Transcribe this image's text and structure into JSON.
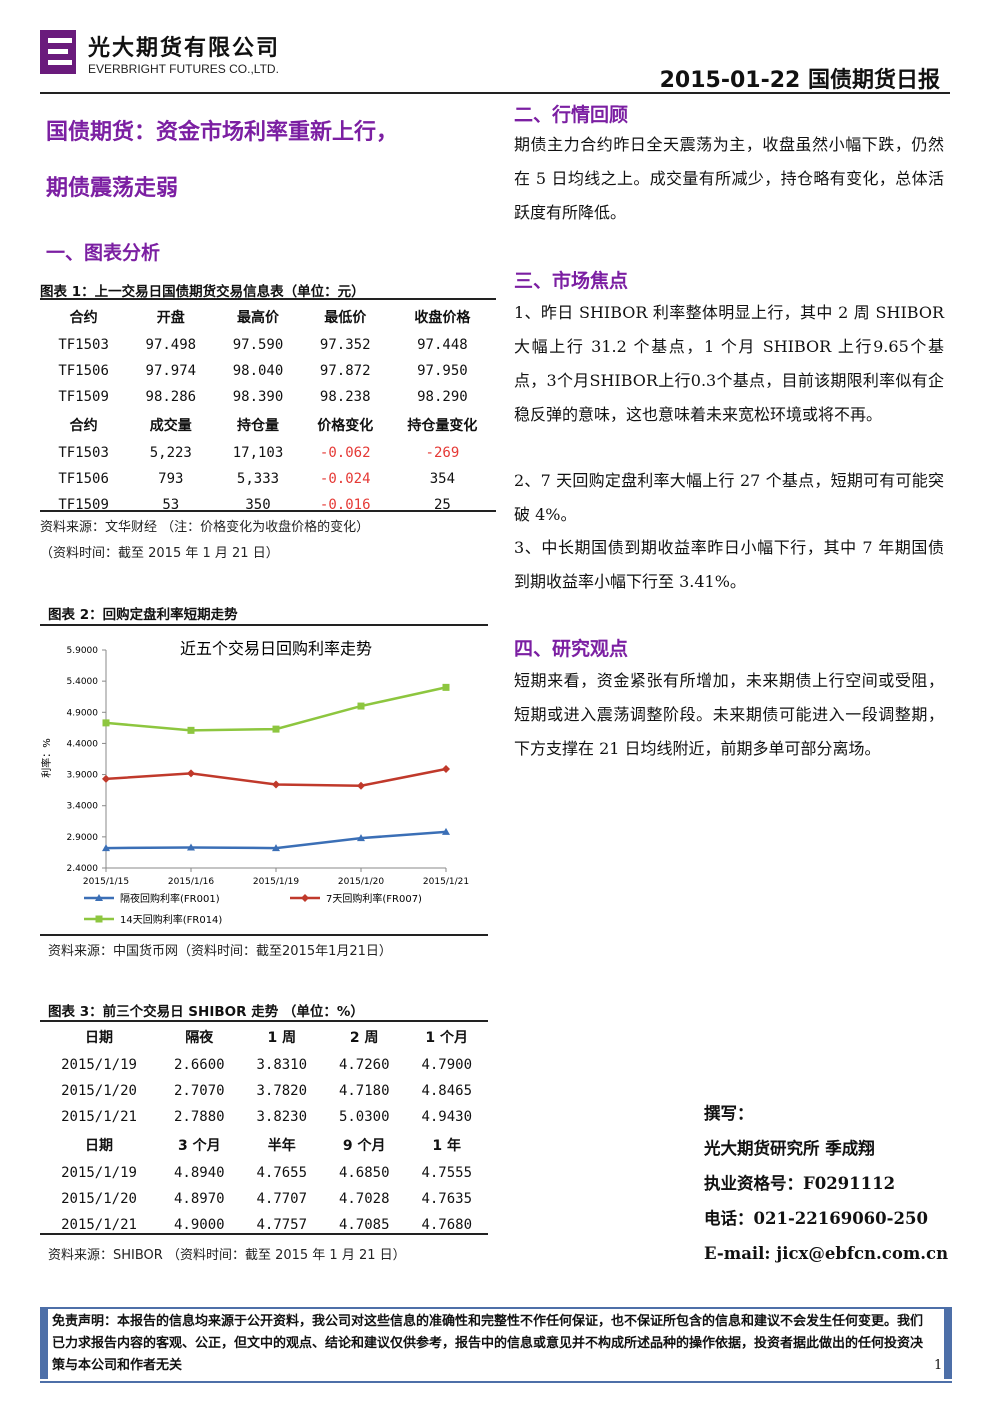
{
  "header": {
    "company_cn": "光大期货有限公司",
    "company_en": "EVERBRIGHT FUTURES CO.,LTD.",
    "report_title": "2015-01-22 国债期货日报"
  },
  "headline": {
    "line1": "国债期货：资金市场利率重新上行，",
    "line2": "期债震荡走弱"
  },
  "section1": {
    "title": "一、图表分析",
    "table1": {
      "caption": "图表 1：上一交易日国债期货交易信息表（单位：元）",
      "headers1": [
        "合约",
        "开盘",
        "最高价",
        "最低价",
        "收盘价格"
      ],
      "rows1": [
        [
          "TF1503",
          "97.498",
          "97.590",
          "97.352",
          "97.448"
        ],
        [
          "TF1506",
          "97.974",
          "98.040",
          "97.872",
          "97.950"
        ],
        [
          "TF1509",
          "98.286",
          "98.390",
          "98.238",
          "98.290"
        ]
      ],
      "headers2": [
        "合约",
        "成交量",
        "持仓量",
        "价格变化",
        "持仓量变化"
      ],
      "rows2": [
        [
          "TF1503",
          "5,223",
          "17,103",
          "-0.062",
          "-269"
        ],
        [
          "TF1506",
          "793",
          "5,333",
          "-0.024",
          "354"
        ],
        [
          "TF1509",
          "53",
          "350",
          "-0.016",
          "25"
        ]
      ],
      "source": "资料来源：文华财经 （注：价格变化为收盘价格的变化）",
      "time": "（资料时间：截至 2015 年 1 月 21 日）"
    },
    "chart": {
      "caption": "图表 2：回购定盘利率短期走势",
      "source": "资料来源：中国货币网（资料时间：截至2015年1月21日）"
    },
    "table3": {
      "caption": "图表 3：前三个交易日 SHIBOR 走势 （单位：%）",
      "headers1": [
        "日期",
        "隔夜",
        "1 周",
        "2 周",
        "1 个月"
      ],
      "rows1": [
        [
          "2015/1/19",
          "2.6600",
          "3.8310",
          "4.7260",
          "4.7900"
        ],
        [
          "2015/1/20",
          "2.7070",
          "3.7820",
          "4.7180",
          "4.8465"
        ],
        [
          "2015/1/21",
          "2.7880",
          "3.8230",
          "5.0300",
          "4.9430"
        ]
      ],
      "headers2": [
        "日期",
        "3 个月",
        "半年",
        "9 个月",
        "1 年"
      ],
      "rows2": [
        [
          "2015/1/19",
          "4.8940",
          "4.7655",
          "4.6850",
          "4.7555"
        ],
        [
          "2015/1/20",
          "4.8970",
          "4.7707",
          "4.7028",
          "4.7635"
        ],
        [
          "2015/1/21",
          "4.9000",
          "4.7757",
          "4.7085",
          "4.7680"
        ]
      ],
      "source": "资料来源：SHIBOR （资料时间：截至 2015 年 1 月 21 日）"
    }
  },
  "section2": {
    "title": "二、行情回顾",
    "text": "期债主力合约昨日全天震荡为主，收盘虽然小幅下跌，仍然在 5 日均线之上。成交量有所减少，持仓略有变化，总体活跃度有所降低。"
  },
  "section3": {
    "title": "三、市场焦点",
    "p1": "1、昨日 SHIBOR 利率整体明显上行，其中 2 周 SHIBOR 大幅上行 31.2 个基点，1 个月 SHIBOR 上行9.65个基点，3个月SHIBOR上行0.3个基点，目前该期限利率似有企稳反弹的意味，这也意味着未来宽松环境或将不再。",
    "p2": "2、7 天回购定盘利率大幅上行 27 个基点，短期可有可能突破 4%。",
    "p3": "3、中长期国债到期收益率昨日小幅下行，其中 7 年期国债到期收益率小幅下行至 3.41%。"
  },
  "section4": {
    "title": "四、研究观点",
    "text": "短期来看，资金紧张有所增加，未来期债上行空间或受阻，短期或进入震荡调整阶段。未来期债可能进入一段调整期，下方支撑在 21 日均线附近，前期多单可部分离场。"
  },
  "contact": {
    "label": "撰写：",
    "author": "光大期货研究所 季成翔",
    "license": "执业资格号：F0291112",
    "phone": "电话：021-22169060-250",
    "email": "E-mail: jicx@ebfcn.com.cn"
  },
  "disclaimer": {
    "text": "免责声明：本报告的信息均来源于公开资料，我公司对这些信息的准确性和完整性不作任何保证，也不保证所包含的信息和建议不会发生任何变更。我们已力求报告内容的客观、公正，但文中的观点、结论和建议仅供参考，报告中的信息或意见并不构成所述品种的操作依据，投资者据此做出的任何投资决策与本公司和作者无关",
    "page": "1"
  },
  "chart_data": {
    "type": "line",
    "title": "近五个交易日回购利率走势",
    "ylabel": "利率：%",
    "categories": [
      "2015/1/15",
      "2015/1/16",
      "2015/1/19",
      "2015/1/20",
      "2015/1/21"
    ],
    "ylim": [
      2.4,
      5.9
    ],
    "yticks": [
      "5.9000",
      "5.4000",
      "4.9000",
      "4.4000",
      "3.9000",
      "3.4000",
      "2.9000",
      "2.4000"
    ],
    "grid": false,
    "legend": "bottom",
    "series": [
      {
        "name": "隔夜回购利率(FR001)",
        "color": "#3b6fb6",
        "values": [
          2.72,
          2.73,
          2.72,
          2.88,
          2.98
        ]
      },
      {
        "name": "7天回购利率(FR007)",
        "color": "#c0392b",
        "values": [
          3.83,
          3.92,
          3.74,
          3.72,
          3.99
        ]
      },
      {
        "name": "14天回购利率(FR014)",
        "color": "#8dc63f",
        "values": [
          4.73,
          4.61,
          4.63,
          5.0,
          5.3
        ]
      }
    ]
  }
}
